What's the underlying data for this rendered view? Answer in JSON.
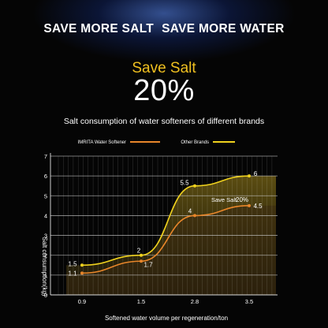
{
  "header": {
    "headline_left": "SAVE MORE SALT",
    "headline_right": "SAVE MORE WATER",
    "save_label": "Save Salt",
    "save_percent": "20%",
    "subtitle": "Salt consumption of water softeners of different brands"
  },
  "colors": {
    "background": "#050505",
    "imrita": "#e8862a",
    "other": "#f0d21e",
    "accent_gold": "#f0c020",
    "grid": "#c8c8c8",
    "area_fill": "#4a3f12"
  },
  "chart_data": {
    "type": "line",
    "title": "Salt consumption of water softeners of different brands",
    "xlabel": "Softened water volume per regeneration/ton",
    "ylabel": "Salt consumption(kg)",
    "categories": [
      "0.9",
      "1.5",
      "2.8",
      "3.5"
    ],
    "x": [
      0.9,
      1.5,
      2.8,
      3.5
    ],
    "ylim": [
      0,
      7
    ],
    "yticks": [
      "0",
      "1",
      "2",
      "3",
      "4",
      "5",
      "6",
      "7"
    ],
    "series": [
      {
        "name": "IMRITA Water Softener",
        "values": [
          1.1,
          1.7,
          4,
          4.5
        ],
        "labels": [
          "1.1",
          "1.7",
          "4",
          "4.5"
        ],
        "color": "#e8862a"
      },
      {
        "name": "Other Brands",
        "values": [
          1.5,
          2,
          5.5,
          6
        ],
        "labels": [
          "1.5",
          "2",
          "5.5",
          "6"
        ],
        "color": "#f0d21e"
      }
    ],
    "annotation": {
      "label": "Save Salt",
      "value": "20%"
    },
    "legend": "top",
    "grid": true
  }
}
